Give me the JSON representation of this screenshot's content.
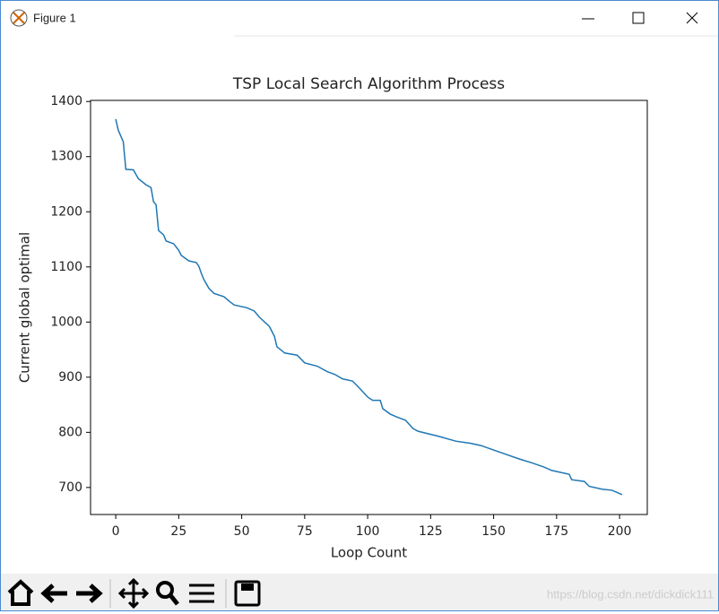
{
  "window": {
    "title": "Figure 1",
    "watermark": "https://blog.csdn.net/dickdick111"
  },
  "chart_data": {
    "type": "line",
    "title": "TSP Local Search Algorithm Process",
    "x_label": "Loop Count",
    "y_label": "Current global optimal",
    "x": [
      0,
      1,
      3,
      4,
      7,
      9,
      12,
      14,
      15,
      16,
      17,
      19,
      20,
      23,
      25,
      26,
      29,
      32,
      33,
      34,
      35,
      37,
      39,
      43,
      45,
      47,
      52,
      55,
      57,
      61,
      63,
      64,
      66,
      67,
      72,
      75,
      80,
      84,
      87,
      90,
      94,
      97,
      100,
      102,
      105,
      106,
      109,
      112,
      115,
      118,
      120,
      128,
      135,
      141,
      145,
      150,
      155,
      160,
      165,
      170,
      173,
      178,
      180,
      181,
      186,
      188,
      193,
      197,
      201
    ],
    "values": [
      1368,
      1348,
      1327,
      1277,
      1276,
      1260,
      1249,
      1244,
      1218,
      1213,
      1166,
      1158,
      1147,
      1142,
      1130,
      1121,
      1111,
      1108,
      1101,
      1088,
      1077,
      1061,
      1052,
      1046,
      1038,
      1031,
      1026,
      1020,
      1009,
      992,
      974,
      955,
      948,
      944,
      940,
      926,
      920,
      910,
      905,
      897,
      893,
      879,
      864,
      858,
      858,
      843,
      833,
      827,
      822,
      807,
      802,
      793,
      784,
      780,
      776,
      768,
      760,
      752,
      745,
      737,
      731,
      726,
      724,
      714,
      711,
      702,
      697,
      695,
      687
    ],
    "color": "#1f77b4",
    "xlim": [
      -10,
      211
    ],
    "ylim": [
      651,
      1402
    ],
    "xticks": [
      0,
      25,
      50,
      75,
      100,
      125,
      150,
      175,
      200
    ],
    "yticks": [
      700,
      800,
      900,
      1000,
      1100,
      1200,
      1300,
      1400
    ]
  }
}
